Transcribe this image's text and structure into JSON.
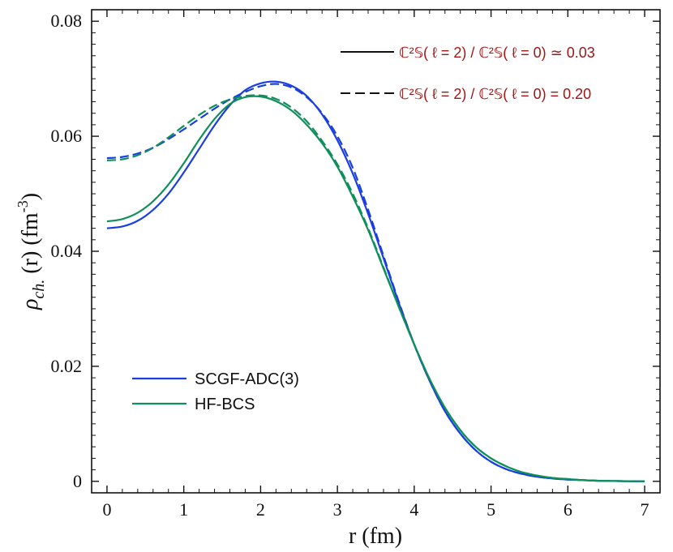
{
  "chart_data": {
    "type": "line",
    "xlabel": "r (fm)",
    "ylabel": {
      "symbol": "ρ",
      "subscript": "ch.",
      "argument": "(r)",
      "unit_prefix": "(fm",
      "unit_exponent": "-3",
      "unit_suffix": ")"
    },
    "xlim": [
      -0.2,
      7.2
    ],
    "ylim": [
      -0.002,
      0.082
    ],
    "xticks": [
      "0",
      "1",
      "2",
      "3",
      "4",
      "5",
      "6",
      "7"
    ],
    "yticks": [
      "0",
      "0.02",
      "0.04",
      "0.06",
      "0.08"
    ],
    "legend": [
      {
        "label": "SCGF-ADC(3)",
        "color": "#1a3fe0"
      },
      {
        "label": "HF-BCS",
        "color": "#0f8f5a"
      }
    ],
    "annotations": [
      {
        "style": "solid",
        "text": "ℂ²𝕊( ℓ = 2) / ℂ²𝕊( ℓ = 0) ≃ 0.03"
      },
      {
        "style": "dashed",
        "text": "ℂ²𝕊( ℓ = 2) / ℂ²𝕊( ℓ = 0) = 0.20"
      }
    ],
    "series": [
      {
        "name": "SCGF-ADC(3) solid",
        "color": "#1a3fe0",
        "dash": "solid",
        "x": [
          0,
          0.2,
          0.4,
          0.6,
          0.8,
          1.0,
          1.2,
          1.4,
          1.6,
          1.8,
          2.0,
          2.2,
          2.4,
          2.6,
          2.8,
          3.0,
          3.2,
          3.4,
          3.6,
          3.8,
          4.0,
          4.2,
          4.4,
          4.6,
          4.8,
          5.0,
          5.2,
          5.4,
          5.6,
          5.8,
          6.0,
          6.2,
          6.4,
          6.6,
          6.8,
          7.0
        ],
        "y": [
          0.044,
          0.0443,
          0.0453,
          0.0472,
          0.05,
          0.0537,
          0.0578,
          0.0619,
          0.0654,
          0.068,
          0.0692,
          0.0695,
          0.0688,
          0.067,
          0.0638,
          0.0593,
          0.0535,
          0.0465,
          0.0388,
          0.031,
          0.0238,
          0.0175,
          0.0122,
          0.0083,
          0.0054,
          0.0034,
          0.0021,
          0.0013,
          0.0008,
          0.0005,
          0.0003,
          0.0002,
          0.0001,
          5e-05,
          2e-05,
          0.0
        ]
      },
      {
        "name": "SCGF-ADC(3) dashed",
        "color": "#1a3fe0",
        "dash": "dashed",
        "x": [
          0,
          0.2,
          0.4,
          0.6,
          0.8,
          1.0,
          1.2,
          1.4,
          1.6,
          1.8,
          2.0,
          2.2,
          2.4,
          2.6,
          2.8,
          3.0,
          3.2,
          3.4,
          3.6,
          3.8,
          4.0,
          4.2,
          4.4,
          4.6,
          4.8,
          5.0,
          5.2,
          5.4,
          5.6,
          5.8,
          6.0,
          6.2,
          6.4,
          6.6,
          6.8,
          7.0
        ],
        "y": [
          0.0562,
          0.0564,
          0.057,
          0.058,
          0.0595,
          0.0612,
          0.063,
          0.0648,
          0.0664,
          0.0677,
          0.0687,
          0.0691,
          0.0685,
          0.0668,
          0.064,
          0.06,
          0.0545,
          0.0472,
          0.0392,
          0.0312,
          0.0238,
          0.0175,
          0.0122,
          0.0083,
          0.0054,
          0.0034,
          0.0021,
          0.0013,
          0.0008,
          0.0005,
          0.0003,
          0.0002,
          0.0001,
          5e-05,
          2e-05,
          0.0
        ]
      },
      {
        "name": "HF-BCS solid",
        "color": "#0f8f5a",
        "dash": "solid",
        "x": [
          0,
          0.2,
          0.4,
          0.6,
          0.8,
          1.0,
          1.2,
          1.4,
          1.6,
          1.8,
          2.0,
          2.2,
          2.4,
          2.6,
          2.8,
          3.0,
          3.2,
          3.4,
          3.6,
          3.8,
          4.0,
          4.2,
          4.4,
          4.6,
          4.8,
          5.0,
          5.2,
          5.4,
          5.6,
          5.8,
          6.0,
          6.2,
          6.4,
          6.6,
          6.8,
          7.0
        ],
        "y": [
          0.0452,
          0.0456,
          0.0467,
          0.0487,
          0.0516,
          0.0553,
          0.0594,
          0.063,
          0.0656,
          0.0668,
          0.0669,
          0.0661,
          0.0645,
          0.062,
          0.0588,
          0.0547,
          0.0495,
          0.0437,
          0.037,
          0.0303,
          0.0238,
          0.0178,
          0.0128,
          0.0089,
          0.006,
          0.004,
          0.0026,
          0.0016,
          0.001,
          0.0006,
          0.0004,
          0.0002,
          0.0001,
          6e-05,
          3e-05,
          0.0
        ]
      },
      {
        "name": "HF-BCS dashed",
        "color": "#0f8f5a",
        "dash": "dashed",
        "x": [
          0,
          0.2,
          0.4,
          0.6,
          0.8,
          1.0,
          1.2,
          1.4,
          1.6,
          1.8,
          2.0,
          2.2,
          2.4,
          2.6,
          2.8,
          3.0,
          3.2,
          3.4,
          3.6,
          3.8,
          4.0,
          4.2,
          4.4,
          4.6,
          4.8,
          5.0,
          5.2,
          5.4,
          5.6,
          5.8,
          6.0,
          6.2,
          6.4,
          6.6,
          6.8,
          7.0
        ],
        "y": [
          0.0558,
          0.056,
          0.0567,
          0.058,
          0.0598,
          0.0618,
          0.0637,
          0.0653,
          0.0664,
          0.067,
          0.0671,
          0.0665,
          0.065,
          0.0626,
          0.0592,
          0.0551,
          0.05,
          0.044,
          0.0372,
          0.0303,
          0.0238,
          0.0178,
          0.0128,
          0.0089,
          0.006,
          0.004,
          0.0026,
          0.0016,
          0.001,
          0.0006,
          0.0004,
          0.0002,
          0.0001,
          6e-05,
          3e-05,
          0.0
        ]
      }
    ]
  }
}
